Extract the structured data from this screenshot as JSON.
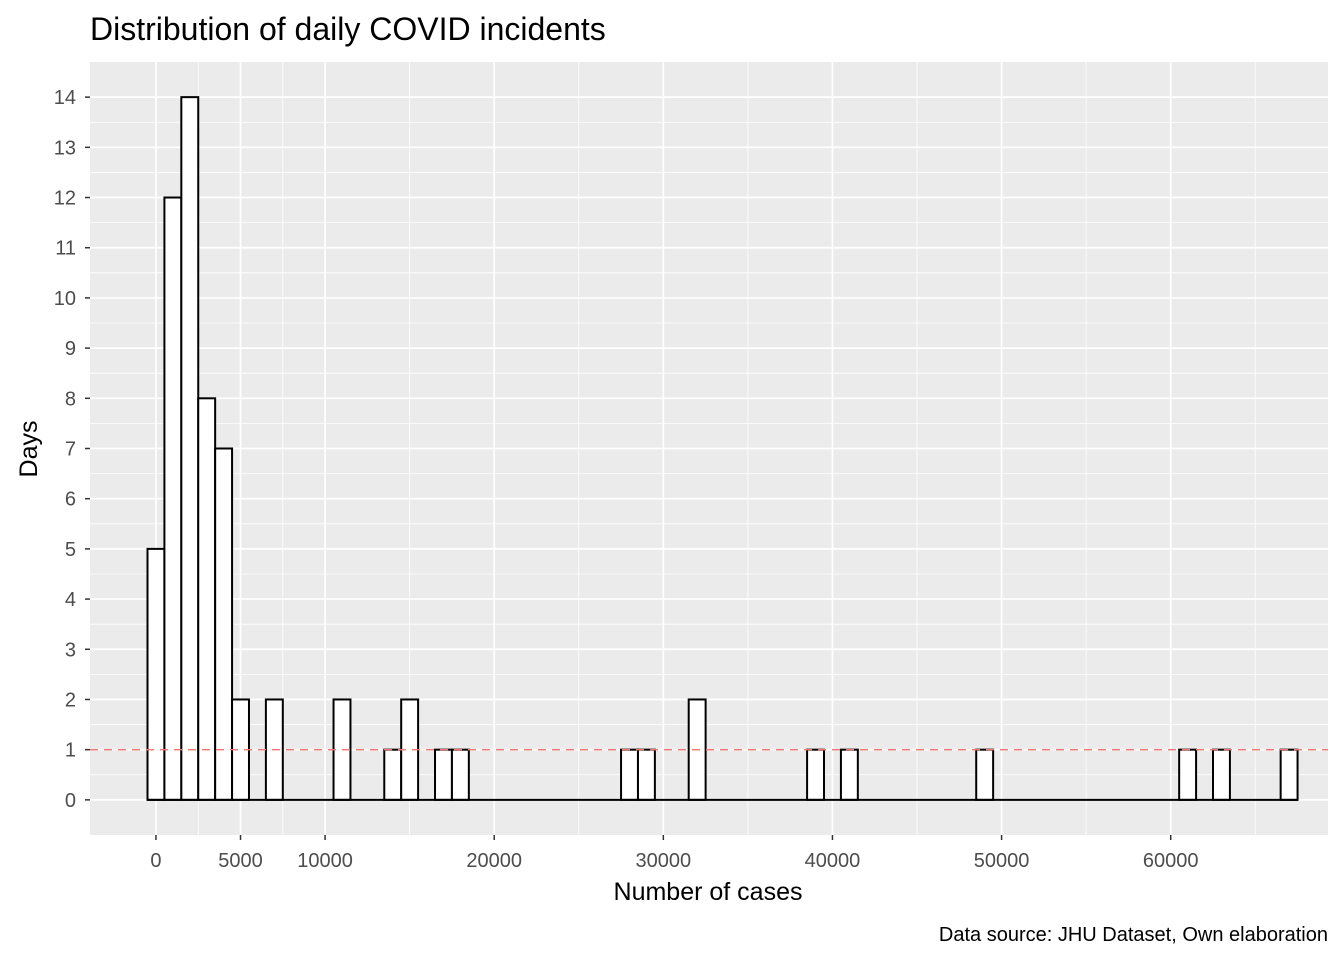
{
  "chart_data": {
    "type": "bar",
    "title": "Distribution of daily COVID incidents",
    "xlabel": "Number of cases",
    "ylabel": "Days",
    "caption": "Data source: JHU Dataset, Own elaboration",
    "xlim": [
      -3900,
      69300
    ],
    "ylim": [
      -0.7,
      14.7
    ],
    "bin_width": 1000,
    "x_ticks": [
      0,
      5000,
      10000,
      20000,
      30000,
      40000,
      50000,
      60000
    ],
    "x_tick_labels": [
      "0",
      "5000",
      "10000",
      "20000",
      "30000",
      "40000",
      "50000",
      "60000"
    ],
    "y_ticks": [
      0,
      1,
      2,
      3,
      4,
      5,
      6,
      7,
      8,
      9,
      10,
      11,
      12,
      13,
      14
    ],
    "y_tick_labels": [
      "0",
      "1",
      "2",
      "3",
      "4",
      "5",
      "6",
      "7",
      "8",
      "9",
      "10",
      "11",
      "12",
      "13",
      "14"
    ],
    "bins": [
      {
        "x": 0,
        "count": 5
      },
      {
        "x": 1000,
        "count": 12
      },
      {
        "x": 2000,
        "count": 14
      },
      {
        "x": 3000,
        "count": 8
      },
      {
        "x": 4000,
        "count": 7
      },
      {
        "x": 5000,
        "count": 2
      },
      {
        "x": 7000,
        "count": 2
      },
      {
        "x": 11000,
        "count": 2
      },
      {
        "x": 14000,
        "count": 1
      },
      {
        "x": 15000,
        "count": 2
      },
      {
        "x": 17000,
        "count": 1
      },
      {
        "x": 18000,
        "count": 1
      },
      {
        "x": 28000,
        "count": 1
      },
      {
        "x": 29000,
        "count": 1
      },
      {
        "x": 32000,
        "count": 2
      },
      {
        "x": 39000,
        "count": 1
      },
      {
        "x": 41000,
        "count": 1
      },
      {
        "x": 49000,
        "count": 1
      },
      {
        "x": 61000,
        "count": 1
      },
      {
        "x": 63000,
        "count": 1
      },
      {
        "x": 67000,
        "count": 1
      }
    ],
    "x_min_bin": 0,
    "x_max_bin": 67000,
    "reference_line": {
      "y": 1,
      "style": "dashed",
      "color": "#f8766d"
    },
    "grid": true,
    "colors": {
      "panel": "#ebebeb",
      "grid": "#ffffff",
      "bar_fill": "#ffffff",
      "bar_stroke": "#000000"
    }
  }
}
